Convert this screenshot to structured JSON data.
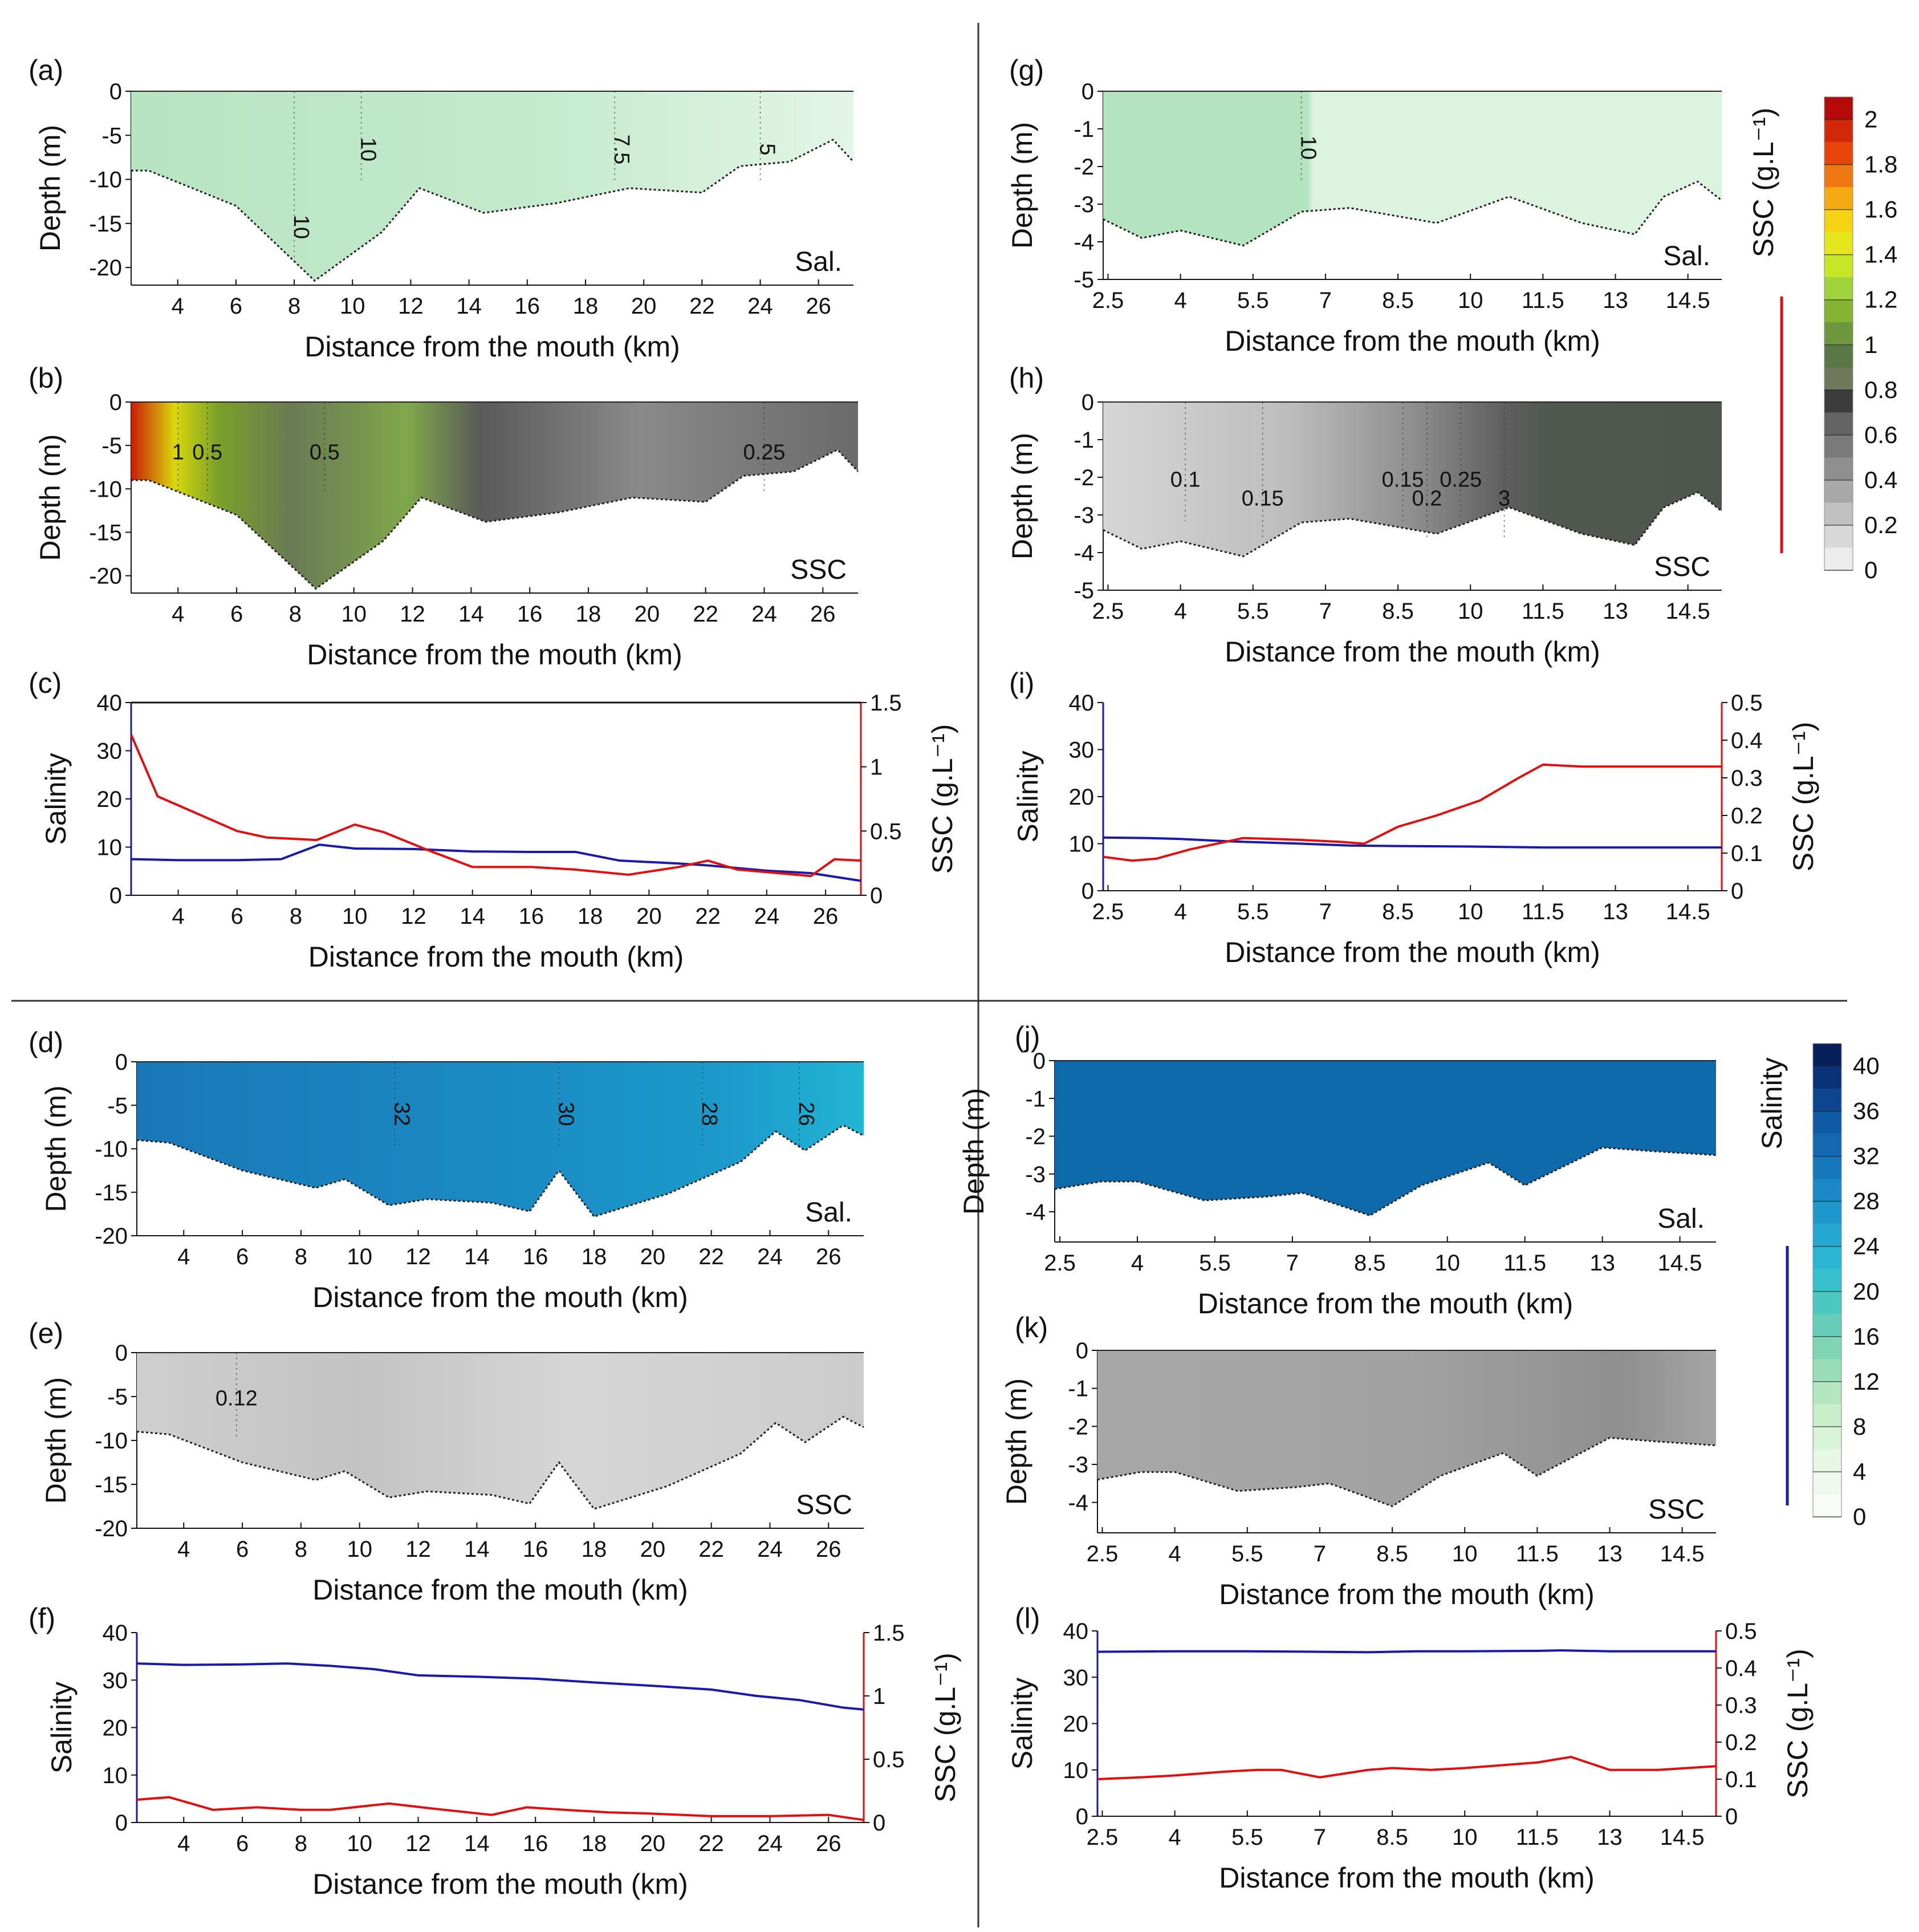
{
  "figure": {
    "xlabel": "Distance from the mouth (km)",
    "depth_ylabel": "Depth (m)",
    "salinity_ylabel": "Salinity",
    "ssc_ylabel": "SSC (g.L⁻¹)",
    "sal_tag": "Sal.",
    "ssc_tag": "SSC",
    "colors": {
      "salinity_line": "#1a1aaa",
      "ssc_line": "#e01010",
      "green_section": "#bfe8c8",
      "blue_section": "#1a86c0",
      "gray_section": "#a9a9a9"
    }
  },
  "axes": {
    "long": {
      "xticks": [
        4,
        6,
        8,
        10,
        12,
        14,
        16,
        18,
        20,
        22,
        24,
        26
      ],
      "xmin": 2.4,
      "xmax": 27.2
    },
    "short": {
      "xticks": [
        "2.5",
        "4",
        "5.5",
        "7",
        "8.5",
        "10",
        "11.5",
        "13",
        "14.5"
      ],
      "xmin": 2.4,
      "xmax": 15.2
    }
  },
  "panels": [
    {
      "id": "a",
      "label": "(a)",
      "kind": "section",
      "axis": "long",
      "fill": "green",
      "tag": "Sal.",
      "yticks": [
        "0",
        "-5",
        "-10",
        "-15",
        "-20"
      ],
      "ymin": -22,
      "contours": [
        "10",
        "10",
        "7.5",
        "5"
      ]
    },
    {
      "id": "b",
      "label": "(b)",
      "kind": "section",
      "axis": "long",
      "fill": "gray_green",
      "tag": "SSC",
      "yticks": [
        "0",
        "-5",
        "-10",
        "-15",
        "-20"
      ],
      "ymin": -22,
      "contours": [
        "0.5",
        "1",
        "0.5",
        "0.25"
      ]
    },
    {
      "id": "c",
      "label": "(c)",
      "kind": "profile",
      "axis": "long",
      "yticks_left": [
        "0",
        "10",
        "20",
        "30",
        "40"
      ],
      "yticks_right": [
        "0",
        "0.5",
        "1",
        "1.5"
      ]
    },
    {
      "id": "d",
      "label": "(d)",
      "kind": "section",
      "axis": "long",
      "fill": "blue",
      "tag": "Sal.",
      "yticks": [
        "0",
        "-5",
        "-10",
        "-15",
        "-20"
      ],
      "ymin": -20,
      "contours": [
        "32",
        "30",
        "28",
        "26"
      ]
    },
    {
      "id": "e",
      "label": "(e)",
      "kind": "section",
      "axis": "long",
      "fill": "gray",
      "tag": "SSC",
      "yticks": [
        "0",
        "-5",
        "-10",
        "-15",
        "-20"
      ],
      "ymin": -20,
      "contours": [
        "0.12"
      ]
    },
    {
      "id": "f",
      "label": "(f)",
      "kind": "profile",
      "axis": "long",
      "yticks_left": [
        "0",
        "10",
        "20",
        "30",
        "40"
      ],
      "yticks_right": [
        "0",
        "0.5",
        "1",
        "1.5"
      ]
    },
    {
      "id": "g",
      "label": "(g)",
      "kind": "section",
      "axis": "short",
      "fill": "green",
      "tag": "Sal.",
      "yticks": [
        "0",
        "-1",
        "-2",
        "-3",
        "-4",
        "-5"
      ],
      "ymin": -5,
      "contours": [
        "10"
      ]
    },
    {
      "id": "h",
      "label": "(h)",
      "kind": "section",
      "axis": "short",
      "fill": "gray_dark",
      "tag": "SSC",
      "yticks": [
        "0",
        "-1",
        "-2",
        "-3",
        "-4",
        "-5"
      ],
      "ymin": -5,
      "contours": [
        "0.1",
        "0.15",
        "0.15",
        "0.2",
        "0.25",
        "3"
      ]
    },
    {
      "id": "i",
      "label": "(i)",
      "kind": "profile",
      "axis": "short",
      "yticks_left": [
        "0",
        "10",
        "20",
        "30",
        "40"
      ],
      "yticks_right": [
        "0",
        "0.1",
        "0.2",
        "0.3",
        "0.4",
        "0.5"
      ]
    },
    {
      "id": "j",
      "label": "(j)",
      "kind": "section",
      "axis": "short",
      "fill": "blue_dark",
      "tag": "Sal.",
      "yticks": [
        "0",
        "-1",
        "-2",
        "-3",
        "-4"
      ],
      "ymin": -4.8,
      "contours": []
    },
    {
      "id": "k",
      "label": "(k)",
      "kind": "section",
      "axis": "short",
      "fill": "gray",
      "tag": "SSC",
      "yticks": [
        "0",
        "-1",
        "-2",
        "-3",
        "-4"
      ],
      "ymin": -4.8,
      "contours": []
    },
    {
      "id": "l",
      "label": "(l)",
      "kind": "profile",
      "axis": "short",
      "yticks_left": [
        "0",
        "10",
        "20",
        "30",
        "40"
      ],
      "yticks_right": [
        "0",
        "0.1",
        "0.2",
        "0.3",
        "0.4",
        "0.5"
      ]
    }
  ],
  "colorbars": [
    {
      "id": "ssc",
      "title": "SSC (g.L⁻¹)",
      "ticks": [
        "2",
        "1.8",
        "1.6",
        "1.4",
        "1.2",
        "1",
        "0.8",
        "0.6",
        "0.4",
        "0.2",
        "0"
      ],
      "max": 2.1
    },
    {
      "id": "salinity",
      "title": "Salinity",
      "ticks": [
        "40",
        "36",
        "32",
        "28",
        "24",
        "20",
        "16",
        "12",
        "8",
        "4",
        "0"
      ],
      "max": 42
    }
  ],
  "chart_data": [
    {
      "type": "area",
      "title": "(a)",
      "xlabel": "Distance from the mouth (km)",
      "ylabel": "Depth (m)",
      "ylim": [
        -22,
        0
      ],
      "bottom": {
        "x": [
          2.4,
          3,
          6,
          8.7,
          11,
          12.3,
          14.5,
          17,
          19.5,
          22,
          23.3,
          25,
          26.5,
          27.2
        ],
        "y": [
          -9,
          -9,
          -13,
          -21.5,
          -16,
          -11,
          -13.8,
          -12.7,
          -11,
          -11.5,
          -8.5,
          -8,
          -5.5,
          -8
        ]
      },
      "contours": [
        {
          "label": "10",
          "x": 8
        },
        {
          "label": "10",
          "x": 10.3
        },
        {
          "label": "7.5",
          "x": 19
        },
        {
          "label": "5",
          "x": 24
        }
      ]
    },
    {
      "type": "area",
      "title": "(b)",
      "xlabel": "Distance from the mouth (km)",
      "ylabel": "Depth (m)",
      "ylim": [
        -22,
        0
      ],
      "bottom": {
        "x": [
          2.4,
          3,
          6,
          8.7,
          11,
          12.3,
          14.5,
          17,
          19.5,
          22,
          23.3,
          25,
          26.5,
          27.2
        ],
        "y": [
          -9,
          -9,
          -13,
          -21.5,
          -16,
          -11,
          -13.8,
          -12.7,
          -11,
          -11.5,
          -8.5,
          -8,
          -5.5,
          -8
        ]
      },
      "contours": [
        {
          "label": "0.5",
          "x": 5
        },
        {
          "label": "1",
          "x": 4
        },
        {
          "label": "0.5",
          "x": 9
        },
        {
          "label": "0.25",
          "x": 24
        }
      ]
    },
    {
      "type": "line",
      "title": "(c)",
      "xlabel": "Distance from the mouth (km)",
      "ylabel_left": "Salinity",
      "ylabel_right": "SSC (g.L⁻¹)",
      "ylim_left": [
        0,
        40
      ],
      "ylim_right": [
        0,
        1.5
      ],
      "series": [
        {
          "name": "Salinity",
          "axis": "left",
          "x": [
            2.4,
            4,
            6,
            7.5,
            8.8,
            10,
            12,
            14,
            16,
            17.5,
            19,
            21,
            22,
            24,
            25.5,
            27.2
          ],
          "values": [
            7.5,
            7.3,
            7.3,
            7.5,
            10.5,
            9.7,
            9.6,
            9.1,
            9,
            9,
            7.2,
            6.6,
            6.2,
            5.1,
            4.6,
            3
          ]
        },
        {
          "name": "SSC",
          "axis": "right",
          "x": [
            2.4,
            3.3,
            4,
            6,
            7,
            8.7,
            10,
            11,
            12.5,
            14,
            16,
            17.5,
            19.3,
            21,
            22,
            23,
            24,
            25.5,
            26.3,
            27.2
          ],
          "values": [
            1.25,
            0.77,
            0.7,
            0.5,
            0.45,
            0.43,
            0.55,
            0.49,
            0.35,
            0.22,
            0.22,
            0.2,
            0.16,
            0.22,
            0.27,
            0.2,
            0.18,
            0.15,
            0.28,
            0.27
          ]
        }
      ]
    },
    {
      "type": "area",
      "title": "(d)",
      "xlabel": "Distance from the mouth (km)",
      "ylabel": "Depth (m)",
      "ylim": [
        -20,
        0
      ],
      "bottom": {
        "x": [
          2.4,
          3.5,
          6,
          8.5,
          9.5,
          11,
          12.3,
          14.5,
          15.8,
          16.8,
          18,
          20.5,
          23,
          24.2,
          25.2,
          26.5,
          27.2
        ],
        "y": [
          -9,
          -9.3,
          -12.5,
          -14.5,
          -13.5,
          -16.5,
          -15.8,
          -16.2,
          -17.2,
          -12.5,
          -17.8,
          -15.2,
          -11.5,
          -8,
          -10.2,
          -7.3,
          -8.5
        ]
      },
      "contours": [
        {
          "label": "32",
          "x": 11.2
        },
        {
          "label": "30",
          "x": 16.8
        },
        {
          "label": "28",
          "x": 21.7
        },
        {
          "label": "26",
          "x": 25
        }
      ]
    },
    {
      "type": "area",
      "title": "(e)",
      "xlabel": "Distance from the mouth (km)",
      "ylabel": "Depth (m)",
      "ylim": [
        -20,
        0
      ],
      "bottom": {
        "x": [
          2.4,
          3.5,
          6,
          8.5,
          9.5,
          11,
          12.3,
          14.5,
          15.8,
          16.8,
          18,
          20.5,
          23,
          24.2,
          25.2,
          26.5,
          27.2
        ],
        "y": [
          -9,
          -9.3,
          -12.5,
          -14.5,
          -13.5,
          -16.5,
          -15.8,
          -16.2,
          -17.2,
          -12.5,
          -17.8,
          -15.2,
          -11.5,
          -8,
          -10.2,
          -7.3,
          -8.5
        ]
      },
      "contours": [
        {
          "label": "0.12",
          "x": 5.8
        }
      ]
    },
    {
      "type": "line",
      "title": "(f)",
      "xlabel": "Distance from the mouth (km)",
      "ylabel_left": "Salinity",
      "ylabel_right": "SSC (g.L⁻¹)",
      "ylim_left": [
        0,
        40
      ],
      "ylim_right": [
        0,
        1.5
      ],
      "series": [
        {
          "name": "Salinity",
          "axis": "left",
          "x": [
            2.4,
            4,
            6,
            7.5,
            9,
            10.5,
            12,
            14,
            16,
            18,
            20,
            22,
            23.5,
            25,
            26.5,
            27.2
          ],
          "values": [
            33.5,
            33.2,
            33.3,
            33.5,
            33,
            32.3,
            31,
            30.7,
            30.3,
            29.5,
            28.8,
            28,
            26.7,
            25.8,
            24.2,
            23.8
          ]
        },
        {
          "name": "SSC",
          "axis": "right",
          "x": [
            2.4,
            3.5,
            5,
            6.5,
            8,
            9,
            11,
            12.5,
            14.5,
            15.7,
            17,
            18.5,
            20,
            22,
            24,
            26,
            27.2
          ],
          "values": [
            0.18,
            0.2,
            0.1,
            0.12,
            0.1,
            0.1,
            0.15,
            0.11,
            0.06,
            0.12,
            0.1,
            0.08,
            0.07,
            0.05,
            0.05,
            0.06,
            0.02
          ]
        }
      ]
    },
    {
      "type": "area",
      "title": "(g)",
      "xlabel": "Distance from the mouth (km)",
      "ylabel": "Depth (m)",
      "ylim": [
        -5,
        0
      ],
      "bottom": {
        "x": [
          2.4,
          3.2,
          4,
          5.3,
          6.5,
          7.5,
          9.3,
          10.8,
          12.3,
          13.4,
          14,
          14.7,
          15.2
        ],
        "y": [
          -3.4,
          -3.9,
          -3.7,
          -4.1,
          -3.2,
          -3.1,
          -3.5,
          -2.8,
          -3.5,
          -3.8,
          -2.8,
          -2.4,
          -2.9
        ]
      },
      "contours": [
        {
          "label": "10",
          "x": 6.5
        }
      ]
    },
    {
      "type": "area",
      "title": "(h)",
      "xlabel": "Distance from the mouth (km)",
      "ylabel": "Depth (m)",
      "ylim": [
        -5,
        0
      ],
      "bottom": {
        "x": [
          2.4,
          3.2,
          4,
          5.3,
          6.5,
          7.5,
          9.3,
          10.8,
          12.3,
          13.4,
          14,
          14.7,
          15.2
        ],
        "y": [
          -3.4,
          -3.9,
          -3.7,
          -4.1,
          -3.2,
          -3.1,
          -3.5,
          -2.8,
          -3.5,
          -3.8,
          -2.8,
          -2.4,
          -2.9
        ]
      },
      "contours": [
        {
          "label": "0.1",
          "x": 4.1
        },
        {
          "label": "0.15",
          "x": 5.7
        },
        {
          "label": "0.15",
          "x": 8.6
        },
        {
          "label": "0.2",
          "x": 9.1
        },
        {
          "label": "0.25",
          "x": 9.8
        },
        {
          "label": "3",
          "x": 10.7
        }
      ]
    },
    {
      "type": "line",
      "title": "(i)",
      "xlabel": "Distance from the mouth (km)",
      "ylabel_left": "Salinity",
      "ylabel_right": "SSC (g.L⁻¹)",
      "ylim_left": [
        0,
        40
      ],
      "ylim_right": [
        0,
        0.5
      ],
      "series": [
        {
          "name": "Salinity",
          "axis": "left",
          "x": [
            2.4,
            3.3,
            4,
            5,
            6.5,
            7.5,
            8.5,
            10,
            11.5,
            13,
            14.5,
            15.2
          ],
          "values": [
            11.3,
            11.2,
            11,
            10.5,
            10,
            9.6,
            9.5,
            9.4,
            9.2,
            9.2,
            9.2,
            9.2
          ]
        },
        {
          "name": "SSC",
          "axis": "right",
          "x": [
            2.4,
            3,
            3.5,
            4.2,
            5.3,
            6.5,
            7.3,
            7.8,
            8.5,
            9.3,
            10.2,
            11,
            11.5,
            12.3,
            13,
            14.5,
            15.2
          ],
          "values": [
            0.09,
            0.08,
            0.085,
            0.11,
            0.14,
            0.135,
            0.13,
            0.125,
            0.17,
            0.2,
            0.24,
            0.3,
            0.335,
            0.33,
            0.33,
            0.33,
            0.33
          ]
        }
      ]
    },
    {
      "type": "area",
      "title": "(j)",
      "xlabel": "Distance from the mouth (km)",
      "ylabel": "Depth (m)",
      "ylim": [
        -4.8,
        0
      ],
      "bottom": {
        "x": [
          2.4,
          3.3,
          4,
          5.3,
          6.5,
          7.2,
          8.5,
          9.5,
          10.8,
          11.5,
          13,
          14,
          15.2
        ],
        "y": [
          -3.4,
          -3.2,
          -3.2,
          -3.7,
          -3.6,
          -3.5,
          -4.1,
          -3.3,
          -2.7,
          -3.3,
          -2.3,
          -2.4,
          -2.5
        ]
      },
      "contours": []
    },
    {
      "type": "area",
      "title": "(k)",
      "xlabel": "Distance from the mouth (km)",
      "ylabel": "Depth (m)",
      "ylim": [
        -4.8,
        0
      ],
      "bottom": {
        "x": [
          2.4,
          3.3,
          4,
          5.3,
          6.5,
          7.2,
          8.5,
          9.5,
          10.8,
          11.5,
          13,
          14,
          15.2
        ],
        "y": [
          -3.4,
          -3.2,
          -3.2,
          -3.7,
          -3.6,
          -3.5,
          -4.1,
          -3.3,
          -2.7,
          -3.3,
          -2.3,
          -2.4,
          -2.5
        ]
      },
      "contours": []
    },
    {
      "type": "line",
      "title": "(l)",
      "xlabel": "Distance from the mouth (km)",
      "ylabel_left": "Salinity",
      "ylabel_right": "SSC (g.L⁻¹)",
      "ylim_left": [
        0,
        40
      ],
      "ylim_right": [
        0,
        0.5
      ],
      "series": [
        {
          "name": "Salinity",
          "axis": "left",
          "x": [
            2.4,
            4,
            5.5,
            7,
            8,
            9,
            10,
            11.5,
            12,
            13,
            14.5,
            15.2
          ],
          "values": [
            35.5,
            35.6,
            35.6,
            35.5,
            35.4,
            35.6,
            35.6,
            35.7,
            35.8,
            35.6,
            35.6,
            35.6
          ]
        },
        {
          "name": "SSC",
          "axis": "right",
          "x": [
            2.4,
            3.3,
            4,
            5,
            5.7,
            6.2,
            7,
            8,
            8.5,
            9.3,
            10,
            11,
            11.5,
            12.2,
            13,
            14,
            15.2
          ],
          "values": [
            0.1,
            0.105,
            0.11,
            0.12,
            0.125,
            0.125,
            0.105,
            0.125,
            0.13,
            0.125,
            0.13,
            0.14,
            0.145,
            0.16,
            0.125,
            0.125,
            0.135
          ]
        }
      ]
    }
  ]
}
